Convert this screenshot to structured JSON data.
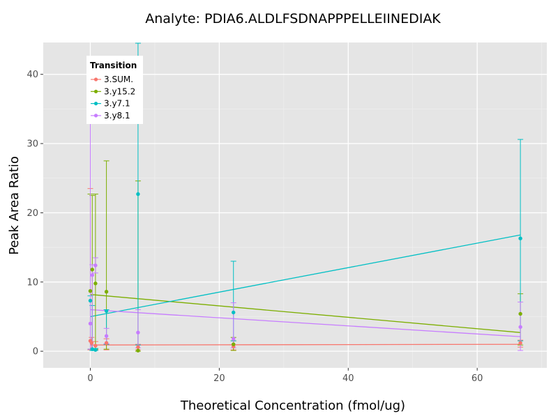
{
  "chart_data": {
    "type": "scatter",
    "title": "Analyte: PDIA6.ALDLFSDNAPPPELLEIINEDIAK",
    "xlabel": "Theoretical Concentration (fmol/ug)",
    "ylabel": "Peak Area Ratio",
    "xlim": [
      -7.3,
      70.8
    ],
    "ylim": [
      -2.4,
      44.6
    ],
    "x_ticks": [
      0,
      20,
      40,
      60
    ],
    "y_ticks": [
      0,
      10,
      20,
      30,
      40
    ],
    "grid": true,
    "legend": {
      "title": "Transition",
      "position": "top-left"
    },
    "series": [
      {
        "name": "3.SUM.",
        "color": "#F8766D",
        "points": [
          {
            "x": 0.0,
            "y": 1.5,
            "lo": 0.2,
            "hi": 23.5
          },
          {
            "x": 0.2,
            "y": 1.2,
            "lo": 0.3,
            "hi": 2.0
          },
          {
            "x": 0.8,
            "y": 0.8,
            "lo": 0.2,
            "hi": 1.4
          },
          {
            "x": 2.5,
            "y": 1.2,
            "lo": 0.2,
            "hi": 1.8
          },
          {
            "x": 7.4,
            "y": 0.6,
            "lo": 0.2,
            "hi": 1.0
          },
          {
            "x": 22.2,
            "y": 0.7,
            "lo": 0.2,
            "hi": 1.5
          },
          {
            "x": 66.7,
            "y": 1.2,
            "lo": 0.6,
            "hi": 1.6
          }
        ],
        "fit": {
          "x": [
            0,
            66.7
          ],
          "y": [
            0.9,
            1.0
          ]
        }
      },
      {
        "name": "3.y15.2",
        "color": "#7CAE00",
        "points": [
          {
            "x": 0.0,
            "y": 8.7,
            "lo": 0.3,
            "hi": 22.7
          },
          {
            "x": 0.3,
            "y": 11.8,
            "lo": 0.3,
            "hi": 22.5
          },
          {
            "x": 0.8,
            "y": 9.8,
            "lo": 0.3,
            "hi": 22.7
          },
          {
            "x": 2.5,
            "y": 8.6,
            "lo": 0.3,
            "hi": 27.5
          },
          {
            "x": 7.4,
            "y": 0.1,
            "lo": 0.0,
            "hi": 24.6
          },
          {
            "x": 22.2,
            "y": 1.0,
            "lo": 0.1,
            "hi": 2.0
          },
          {
            "x": 66.7,
            "y": 5.4,
            "lo": 0.9,
            "hi": 8.3
          }
        ],
        "fit": {
          "x": [
            0,
            66.7
          ],
          "y": [
            8.2,
            2.7
          ]
        }
      },
      {
        "name": "3.y7.1",
        "color": "#00BFC4",
        "points": [
          {
            "x": 0.0,
            "y": 7.3,
            "lo": 0.3,
            "hi": 8.0
          },
          {
            "x": 0.3,
            "y": 0.3,
            "lo": 0.1,
            "hi": 6.6
          },
          {
            "x": 0.8,
            "y": 0.2,
            "lo": 0.1,
            "hi": 0.4
          },
          {
            "x": 2.5,
            "y": 5.8,
            "lo": 1.0,
            "hi": 6.0
          },
          {
            "x": 7.4,
            "y": 22.7,
            "lo": 0.9,
            "hi": 44.5
          },
          {
            "x": 22.2,
            "y": 5.6,
            "lo": 1.5,
            "hi": 13.0
          },
          {
            "x": 66.7,
            "y": 16.3,
            "lo": 1.5,
            "hi": 30.6
          }
        ],
        "fit": {
          "x": [
            0,
            66.7
          ],
          "y": [
            5.0,
            16.8
          ]
        }
      },
      {
        "name": "3.y8.1",
        "color": "#C77CFF",
        "points": [
          {
            "x": 0.0,
            "y": 4.0,
            "lo": 0.3,
            "hi": 40.8
          },
          {
            "x": 0.3,
            "y": 11.0,
            "lo": 0.3,
            "hi": 12.5
          },
          {
            "x": 0.8,
            "y": 12.4,
            "lo": 11.3,
            "hi": 13.5
          },
          {
            "x": 2.5,
            "y": 2.2,
            "lo": 1.1,
            "hi": 3.3
          },
          {
            "x": 7.4,
            "y": 2.7,
            "lo": 0.5,
            "hi": 6.0
          },
          {
            "x": 22.2,
            "y": 1.8,
            "lo": 0.5,
            "hi": 7.0
          },
          {
            "x": 66.7,
            "y": 3.5,
            "lo": 0.1,
            "hi": 7.1
          }
        ],
        "fit": {
          "x": [
            0,
            66.7
          ],
          "y": [
            6.0,
            2.1
          ]
        }
      }
    ]
  }
}
